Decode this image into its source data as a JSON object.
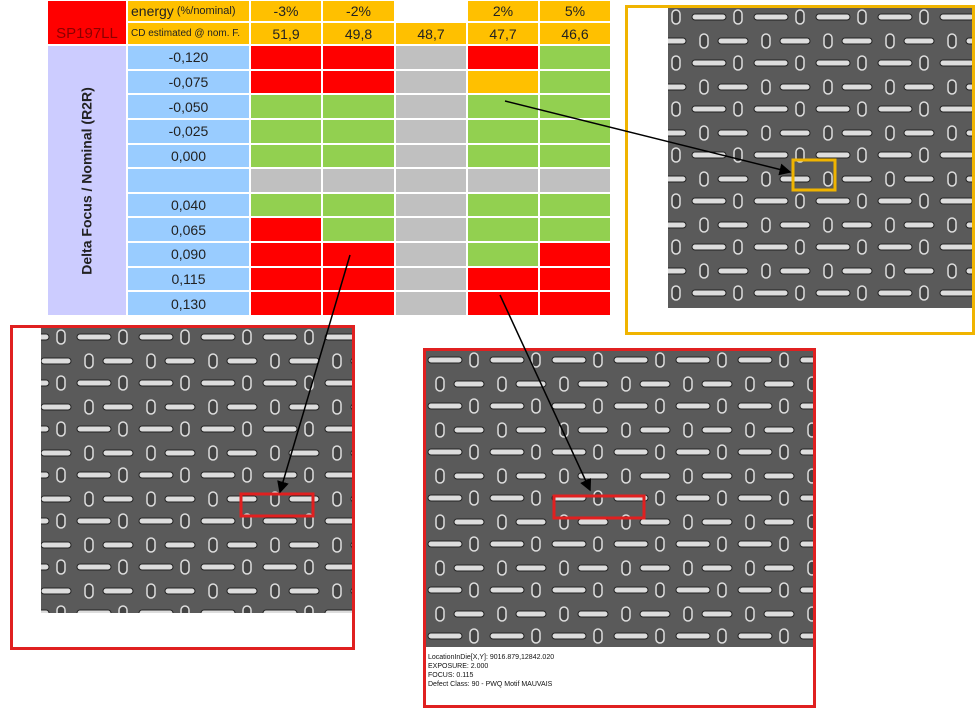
{
  "table": {
    "corner": "SP197LL",
    "row_axis_label": "Delta Focus / Nominal (R2R)",
    "header_rows": [
      {
        "label": "energy",
        "unit": "(%/nominal)",
        "values": [
          "-3%",
          "-2%",
          null,
          "2%",
          "5%"
        ]
      },
      {
        "label": "CD estimated @ nom. F.",
        "values": [
          "51,9",
          "49,8",
          "48,7",
          "47,7",
          "46,6"
        ]
      }
    ],
    "colors": {
      "R": "#ff0000",
      "G": "#92d050",
      "X": "#c0c0c0",
      "O": "#ffc000"
    },
    "rows": [
      {
        "focus": "-0,120",
        "cells": [
          "R",
          "R",
          "X",
          "R",
          "G"
        ]
      },
      {
        "focus": "-0,075",
        "cells": [
          "R",
          "R",
          "X",
          "O",
          "G"
        ]
      },
      {
        "focus": "-0,050",
        "cells": [
          "G",
          "G",
          "X",
          "G",
          "G"
        ]
      },
      {
        "focus": "-0,025",
        "cells": [
          "G",
          "G",
          "X",
          "G",
          "G"
        ]
      },
      {
        "focus": "0,000",
        "cells": [
          "G",
          "G",
          "X",
          "G",
          "G"
        ]
      },
      {
        "focus": null,
        "cells": [
          "X",
          "X",
          "X",
          "X",
          "X"
        ]
      },
      {
        "focus": "0,040",
        "cells": [
          "G",
          "G",
          "X",
          "G",
          "G"
        ]
      },
      {
        "focus": "0,065",
        "cells": [
          "R",
          "G",
          "X",
          "G",
          "G"
        ]
      },
      {
        "focus": "0,090",
        "cells": [
          "R",
          "R",
          "X",
          "G",
          "R"
        ]
      },
      {
        "focus": "0,115",
        "cells": [
          "R",
          "R",
          "X",
          "R",
          "R"
        ]
      },
      {
        "focus": "0,130",
        "cells": [
          "R",
          "R",
          "X",
          "R",
          "R"
        ]
      }
    ]
  },
  "images": {
    "bottom_right_caption": [
      "LocationInDie[X,Y]: 9016.879,12842.020",
      "EXPOSURE: 2.000",
      "FOCUS: 0.115",
      "Defect Class: 90 - PWQ Motif MAUVAIS"
    ]
  }
}
